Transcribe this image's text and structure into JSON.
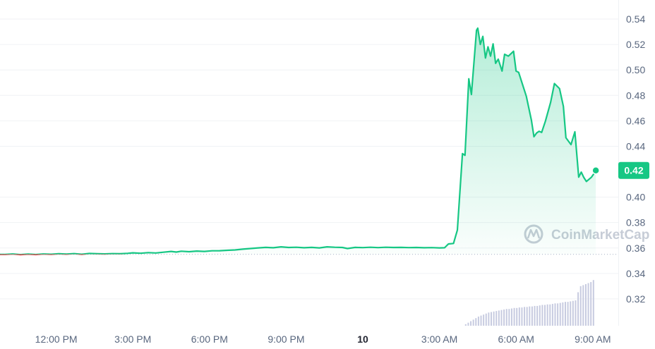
{
  "watermark": {
    "text": "CoinMarketCap",
    "icon": "coinmarketcap-logo"
  },
  "colors": {
    "up": "#16c784",
    "down": "#ea3943",
    "volume": "#c7cbe0",
    "grid": "#f0f2f5",
    "baseline": "#a6b0c3",
    "axis_text": "#58667e"
  },
  "chart_data": {
    "type": "area",
    "y_axis": {
      "position": "right",
      "ylim": [
        0.3,
        0.555
      ],
      "ticks": [
        "0.54",
        "0.52",
        "0.50",
        "0.48",
        "0.46",
        "0.44",
        "0.40",
        "0.38",
        "0.36",
        "0.34",
        "0.32"
      ]
    },
    "x_axis": {
      "ticks": [
        "12:00 PM",
        "3:00 PM",
        "6:00 PM",
        "9:00 PM",
        "10",
        "3:00 AM",
        "6:00 AM",
        "9:00 AM"
      ],
      "tick_hours": [
        12,
        15,
        18,
        21,
        24,
        27,
        30,
        33
      ],
      "bold_tick": "10",
      "range_hours": [
        9.8,
        34.0
      ]
    },
    "reference_price": 0.355,
    "current_price_label": "0.42",
    "current_price": 0.421,
    "grid": true,
    "series": [
      {
        "values": [
          [
            9.8,
            0.355
          ],
          [
            10.0,
            0.355
          ],
          [
            10.3,
            0.3553
          ],
          [
            10.6,
            0.3548
          ],
          [
            10.9,
            0.3552
          ],
          [
            11.2,
            0.3549
          ],
          [
            11.5,
            0.3553
          ],
          [
            11.8,
            0.3551
          ],
          [
            12.1,
            0.3555
          ],
          [
            12.4,
            0.3552
          ],
          [
            12.7,
            0.3556
          ],
          [
            13.0,
            0.3551
          ],
          [
            13.3,
            0.3557
          ],
          [
            13.6,
            0.3555
          ],
          [
            13.9,
            0.3554
          ],
          [
            14.2,
            0.3556
          ],
          [
            14.5,
            0.3555
          ],
          [
            14.8,
            0.3558
          ],
          [
            15.0,
            0.3562
          ],
          [
            15.3,
            0.3559
          ],
          [
            15.6,
            0.3564
          ],
          [
            15.9,
            0.3561
          ],
          [
            16.2,
            0.3567
          ],
          [
            16.5,
            0.3573
          ],
          [
            16.7,
            0.3568
          ],
          [
            16.9,
            0.3575
          ],
          [
            17.2,
            0.3571
          ],
          [
            17.5,
            0.3576
          ],
          [
            17.8,
            0.3573
          ],
          [
            18.1,
            0.3578
          ],
          [
            18.4,
            0.3579
          ],
          [
            18.7,
            0.3582
          ],
          [
            19.0,
            0.3585
          ],
          [
            19.3,
            0.3591
          ],
          [
            19.6,
            0.3596
          ],
          [
            19.9,
            0.3601
          ],
          [
            20.2,
            0.3605
          ],
          [
            20.5,
            0.3602
          ],
          [
            20.8,
            0.3609
          ],
          [
            21.1,
            0.3604
          ],
          [
            21.4,
            0.3606
          ],
          [
            21.7,
            0.3602
          ],
          [
            22.0,
            0.3605
          ],
          [
            22.3,
            0.3601
          ],
          [
            22.6,
            0.3609
          ],
          [
            22.9,
            0.3606
          ],
          [
            23.2,
            0.3604
          ],
          [
            23.4,
            0.3596
          ],
          [
            23.7,
            0.3605
          ],
          [
            24.0,
            0.3603
          ],
          [
            24.3,
            0.3606
          ],
          [
            24.6,
            0.3603
          ],
          [
            24.9,
            0.3606
          ],
          [
            25.2,
            0.3604
          ],
          [
            25.5,
            0.3605
          ],
          [
            25.8,
            0.3603
          ],
          [
            26.1,
            0.3604
          ],
          [
            26.4,
            0.3602
          ],
          [
            26.7,
            0.3603
          ],
          [
            27.0,
            0.3601
          ],
          [
            27.2,
            0.3602
          ],
          [
            27.35,
            0.3632
          ],
          [
            27.55,
            0.3636
          ],
          [
            27.7,
            0.3741
          ],
          [
            27.9,
            0.4342
          ],
          [
            28.0,
            0.4329
          ],
          [
            28.15,
            0.4931
          ],
          [
            28.25,
            0.4807
          ],
          [
            28.45,
            0.5311
          ],
          [
            28.5,
            0.5329
          ],
          [
            28.6,
            0.5201
          ],
          [
            28.7,
            0.5264
          ],
          [
            28.8,
            0.5094
          ],
          [
            28.9,
            0.5182
          ],
          [
            29.0,
            0.5109
          ],
          [
            29.1,
            0.5205
          ],
          [
            29.2,
            0.5052
          ],
          [
            29.3,
            0.5085
          ],
          [
            29.45,
            0.4991
          ],
          [
            29.55,
            0.5123
          ],
          [
            29.7,
            0.5109
          ],
          [
            29.9,
            0.5147
          ],
          [
            30.0,
            0.4991
          ],
          [
            30.1,
            0.4981
          ],
          [
            30.4,
            0.4793
          ],
          [
            30.6,
            0.4605
          ],
          [
            30.7,
            0.4475
          ],
          [
            30.8,
            0.4504
          ],
          [
            30.9,
            0.4518
          ],
          [
            31.0,
            0.4509
          ],
          [
            31.15,
            0.4599
          ],
          [
            31.35,
            0.4745
          ],
          [
            31.5,
            0.4893
          ],
          [
            31.7,
            0.4854
          ],
          [
            31.85,
            0.4714
          ],
          [
            31.95,
            0.4467
          ],
          [
            32.15,
            0.4413
          ],
          [
            32.3,
            0.4514
          ],
          [
            32.45,
            0.4157
          ],
          [
            32.55,
            0.4197
          ],
          [
            32.65,
            0.4155
          ],
          [
            32.75,
            0.4123
          ],
          [
            32.95,
            0.4157
          ],
          [
            33.05,
            0.4186
          ],
          [
            33.12,
            0.421
          ]
        ]
      }
    ],
    "volume": {
      "start_hour": 28.0,
      "end_hour": 33.1,
      "bar_hours": 0.1,
      "levels": [
        0.03,
        0.06,
        0.09,
        0.12,
        0.15,
        0.18,
        0.2,
        0.22,
        0.24,
        0.26,
        0.27,
        0.28,
        0.29,
        0.3,
        0.31,
        0.32,
        0.33,
        0.33,
        0.34,
        0.35,
        0.35,
        0.36,
        0.36,
        0.37,
        0.37,
        0.38,
        0.38,
        0.39,
        0.39,
        0.4,
        0.41,
        0.41,
        0.42,
        0.42,
        0.43,
        0.44,
        0.44,
        0.45,
        0.46,
        0.47,
        0.47,
        0.48,
        0.49,
        0.5,
        0.66,
        0.78,
        0.8,
        0.82,
        0.84,
        0.86,
        0.9
      ]
    }
  }
}
